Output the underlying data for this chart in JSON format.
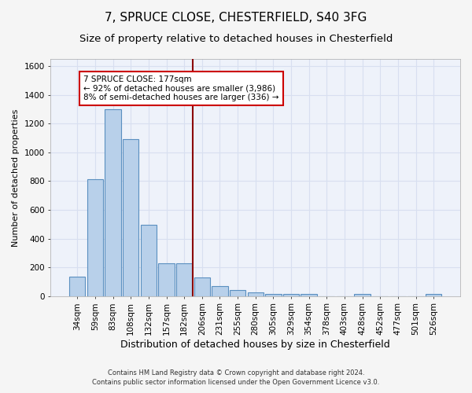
{
  "title1": "7, SPRUCE CLOSE, CHESTERFIELD, S40 3FG",
  "title2": "Size of property relative to detached houses in Chesterfield",
  "xlabel": "Distribution of detached houses by size in Chesterfield",
  "ylabel": "Number of detached properties",
  "footer1": "Contains HM Land Registry data © Crown copyright and database right 2024.",
  "footer2": "Contains public sector information licensed under the Open Government Licence v3.0.",
  "annotation_line1": "7 SPRUCE CLOSE: 177sqm",
  "annotation_line2": "← 92% of detached houses are smaller (3,986)",
  "annotation_line3": "8% of semi-detached houses are larger (336) →",
  "bar_color": "#b8d0ea",
  "bar_edge_color": "#5a8fc0",
  "vline_color": "#8b0000",
  "categories": [
    "34sqm",
    "59sqm",
    "83sqm",
    "108sqm",
    "132sqm",
    "157sqm",
    "182sqm",
    "206sqm",
    "231sqm",
    "255sqm",
    "280sqm",
    "305sqm",
    "329sqm",
    "354sqm",
    "378sqm",
    "403sqm",
    "428sqm",
    "452sqm",
    "477sqm",
    "501sqm",
    "526sqm"
  ],
  "values": [
    135,
    815,
    1300,
    1090,
    495,
    230,
    230,
    130,
    70,
    40,
    28,
    12,
    12,
    12,
    0,
    0,
    12,
    0,
    0,
    0,
    12
  ],
  "vline_index": 6.5,
  "ylim": [
    0,
    1650
  ],
  "yticks": [
    0,
    200,
    400,
    600,
    800,
    1000,
    1200,
    1400,
    1600
  ],
  "bg_color": "#eef2fa",
  "grid_color": "#d8dff0",
  "fig_bg_color": "#f5f5f5",
  "title1_fontsize": 11,
  "title2_fontsize": 9.5,
  "xlabel_fontsize": 9,
  "ylabel_fontsize": 8,
  "tick_fontsize": 7.5,
  "footer_fontsize": 6,
  "ann_fontsize": 7.5
}
